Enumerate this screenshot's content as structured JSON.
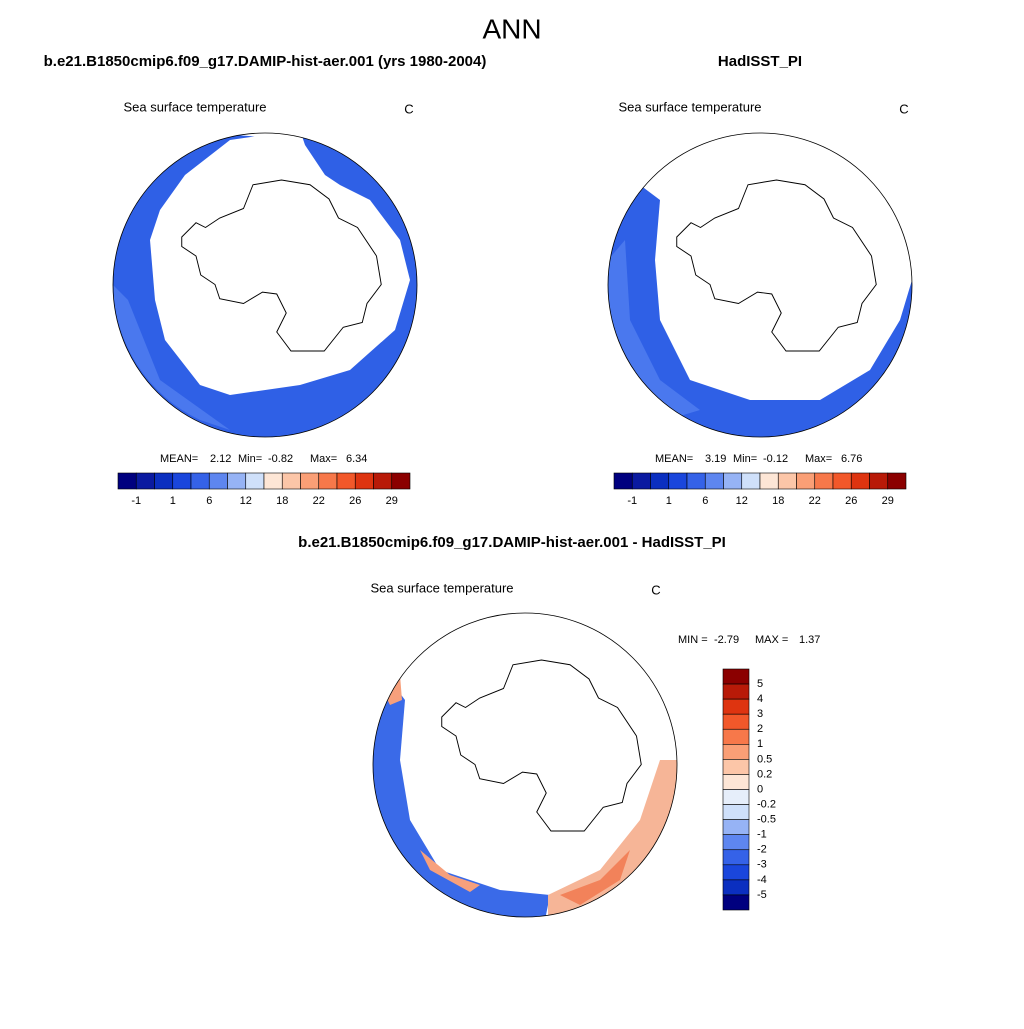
{
  "title": "ANN",
  "panels": [
    {
      "subtitle": "b.e21.B1850cmip6.f09_g17.DAMIP-hist-aer.001 (yrs 1980-2004)",
      "field": "Sea surface temperature",
      "units": "C",
      "stats": {
        "mean_label": "MEAN=",
        "mean": 2.12,
        "min_label": "Min=",
        "min": -0.82,
        "max_label": "Max=",
        "max": 6.34
      }
    },
    {
      "subtitle": "HadISST_PI",
      "field": "Sea surface temperature",
      "units": "C",
      "stats": {
        "mean_label": "MEAN=",
        "mean": 3.19,
        "min_label": "Min=",
        "min": -0.12,
        "max_label": "Max=",
        "max": 6.76
      }
    },
    {
      "subtitle": "b.e21.B1850cmip6.f09_g17.DAMIP-hist-aer.001 - HadISST_PI",
      "field": "Sea surface temperature",
      "units": "C",
      "stats": {
        "min_label": "MIN =",
        "min": -2.79,
        "max_label": "MAX =",
        "max": 1.37
      }
    }
  ],
  "colorbar_horizontal": {
    "labels": [
      -1,
      1,
      6,
      12,
      18,
      22,
      26,
      29
    ],
    "colors": [
      "#00007f",
      "#0a1aa0",
      "#0b2fc0",
      "#1a46dc",
      "#3562e8",
      "#5e86f0",
      "#96b3f5",
      "#cfe0fa",
      "#fde6d6",
      "#fcc6a8",
      "#fa9f76",
      "#f7784a",
      "#f2582a",
      "#de3410",
      "#b81a08",
      "#8b0000"
    ]
  },
  "colorbar_vertical": {
    "labels": [
      5,
      4,
      3,
      2,
      1,
      0.5,
      0.2,
      0,
      -0.2,
      -0.5,
      -1,
      -2,
      -3,
      -4,
      -5
    ],
    "colors": [
      "#8b0000",
      "#b81a08",
      "#de3410",
      "#f2582a",
      "#f7784a",
      "#fa9f76",
      "#fcc6a8",
      "#fde6d6",
      "#e6eefa",
      "#cfe0fa",
      "#96b3f5",
      "#5e86f0",
      "#3562e8",
      "#1a46dc",
      "#0b2fc0",
      "#00007f"
    ]
  }
}
